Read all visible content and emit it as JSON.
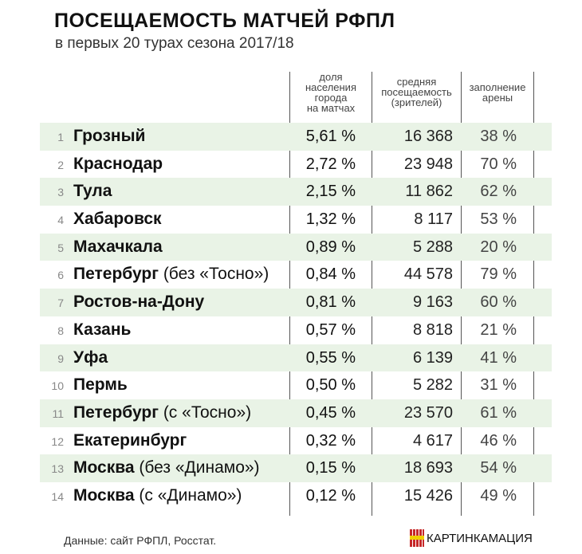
{
  "header": {
    "title": "ПОСЕЩАЕМОСТЬ МАТЧЕЙ РФПЛ",
    "subtitle": "в первых 20 турах сезона 2017/18"
  },
  "columns": {
    "share": [
      "доля",
      "населения",
      "города",
      "на матчах"
    ],
    "avg": [
      "средняя",
      "посещаемость",
      "(зрителей)"
    ],
    "fill": [
      "заполнение",
      "арены"
    ]
  },
  "rows": [
    {
      "rank": "1",
      "city": "Грозный",
      "note": "",
      "share": "5,61 %",
      "avg": "16 368",
      "fill": "38 %"
    },
    {
      "rank": "2",
      "city": "Краснодар",
      "note": "",
      "share": "2,72 %",
      "avg": "23 948",
      "fill": "70 %"
    },
    {
      "rank": "3",
      "city": "Тула",
      "note": "",
      "share": "2,15 %",
      "avg": "11 862",
      "fill": "62 %"
    },
    {
      "rank": "4",
      "city": "Хабаровск",
      "note": "",
      "share": "1,32 %",
      "avg": "8 117",
      "fill": "53 %"
    },
    {
      "rank": "5",
      "city": "Махачкала",
      "note": "",
      "share": "0,89 %",
      "avg": "5 288",
      "fill": "20 %"
    },
    {
      "rank": "6",
      "city": "Петербург",
      "note": "(без «Тосно»)",
      "share": "0,84 %",
      "avg": "44 578",
      "fill": "79 %"
    },
    {
      "rank": "7",
      "city": "Ростов-на-Дону",
      "note": "",
      "share": "0,81 %",
      "avg": "9 163",
      "fill": "60 %"
    },
    {
      "rank": "8",
      "city": "Казань",
      "note": "",
      "share": "0,57 %",
      "avg": "8 818",
      "fill": "21 %"
    },
    {
      "rank": "9",
      "city": "Уфа",
      "note": "",
      "share": "0,55 %",
      "avg": "6 139",
      "fill": "41 %"
    },
    {
      "rank": "10",
      "city": "Пермь",
      "note": "",
      "share": "0,50 %",
      "avg": "5 282",
      "fill": "31 %"
    },
    {
      "rank": "11",
      "city": "Петербург",
      "note": "(с «Тосно»)",
      "share": "0,45 %",
      "avg": "23 570",
      "fill": "61 %"
    },
    {
      "rank": "12",
      "city": "Екатеринбург",
      "note": "",
      "share": "0,32 %",
      "avg": "4 617",
      "fill": "46 %"
    },
    {
      "rank": "13",
      "city": "Москва",
      "note": "(без «Динамо»)",
      "share": "0,15 %",
      "avg": "18 693",
      "fill": "54 %"
    },
    {
      "rank": "14",
      "city": "Москва",
      "note": "(с «Динамо»)",
      "share": "0,12 %",
      "avg": "15 426",
      "fill": "49 %"
    }
  ],
  "footer": {
    "source": "Данные: сайт РФПЛ, Росстат.",
    "logo": "КАРТИНКАМАЦИЯ"
  },
  "colors": {
    "band": "#e9f3e6",
    "text": "#111111",
    "rank": "#888888"
  },
  "chart_data": {
    "type": "table",
    "title": "ПОСЕЩАЕМОСТЬ МАТЧЕЙ РФПЛ",
    "subtitle": "в первых 20 турах сезона 2017/18",
    "columns": [
      "#",
      "Город",
      "доля населения города на матчах",
      "средняя посещаемость (зрителей)",
      "заполнение арены"
    ],
    "rows": [
      [
        1,
        "Грозный",
        5.61,
        16368,
        38
      ],
      [
        2,
        "Краснодар",
        2.72,
        23948,
        70
      ],
      [
        3,
        "Тула",
        2.15,
        11862,
        62
      ],
      [
        4,
        "Хабаровск",
        1.32,
        8117,
        53
      ],
      [
        5,
        "Махачкала",
        0.89,
        5288,
        20
      ],
      [
        6,
        "Петербург (без «Тосно»)",
        0.84,
        44578,
        79
      ],
      [
        7,
        "Ростов-на-Дону",
        0.81,
        9163,
        60
      ],
      [
        8,
        "Казань",
        0.57,
        8818,
        21
      ],
      [
        9,
        "Уфа",
        0.55,
        6139,
        41
      ],
      [
        10,
        "Пермь",
        0.5,
        5282,
        31
      ],
      [
        11,
        "Петербург (с «Тосно»)",
        0.45,
        23570,
        61
      ],
      [
        12,
        "Екатеринбург",
        0.32,
        4617,
        46
      ],
      [
        13,
        "Москва (без «Динамо»)",
        0.15,
        18693,
        54
      ],
      [
        14,
        "Москва (с «Динамо»)",
        0.12,
        15426,
        49
      ]
    ],
    "units": {
      "share": "%",
      "fill": "%"
    },
    "source": "Данные: сайт РФПЛ, Росстат."
  }
}
